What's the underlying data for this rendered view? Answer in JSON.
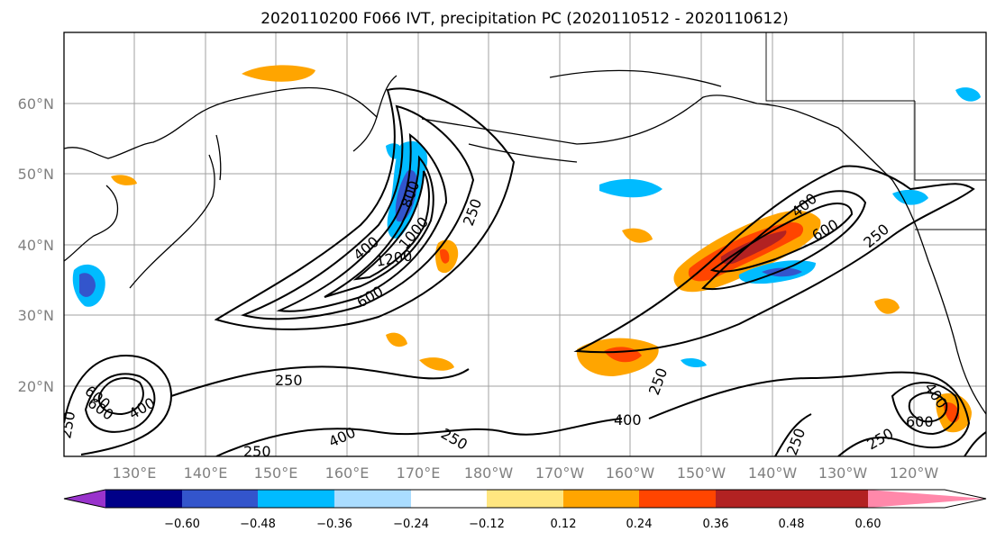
{
  "title": "2020110200 F066 IVT, precipitation PC (2020110512 - 2020110612)",
  "map": {
    "lat_labels": [
      "60°N",
      "50°N",
      "40°N",
      "30°N",
      "20°N"
    ],
    "lon_labels": [
      "130°E",
      "140°E",
      "150°E",
      "160°E",
      "170°E",
      "180°W",
      "170°W",
      "160°W",
      "150°W",
      "140°W",
      "130°W",
      "120°W"
    ],
    "contour_labels": [
      "250",
      "400",
      "600",
      "800",
      "1000",
      "1200",
      "250",
      "400",
      "600",
      "250",
      "400",
      "600",
      "250",
      "400",
      "250",
      "400",
      "600",
      "250",
      "250",
      "400",
      "600",
      "250",
      "250"
    ]
  },
  "colorbar": {
    "colors": [
      "#9933cc",
      "#000088",
      "#3355cc",
      "#00bbff",
      "#aaddff",
      "#ffffff",
      "#ffe680",
      "#ffa500",
      "#ff4500",
      "#b22222",
      "#ff88aa"
    ],
    "tick_labels": [
      "−0.60",
      "−0.48",
      "−0.36",
      "−0.24",
      "−0.12",
      "0.12",
      "0.24",
      "0.36",
      "0.48",
      "0.60"
    ]
  }
}
